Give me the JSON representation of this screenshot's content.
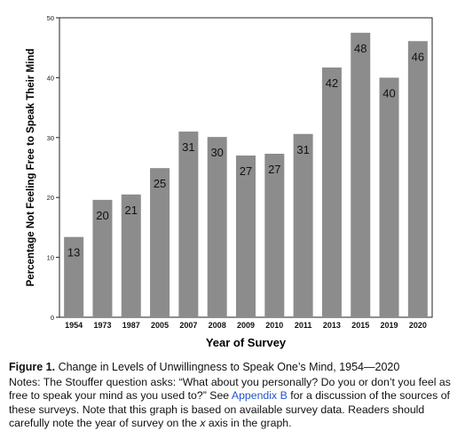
{
  "chart_data": {
    "type": "bar",
    "categories": [
      "1954",
      "1973",
      "1987",
      "2005",
      "2007",
      "2008",
      "2009",
      "2010",
      "2011",
      "2013",
      "2015",
      "2019",
      "2020"
    ],
    "values": [
      13.4,
      19.6,
      20.5,
      24.9,
      31.0,
      30.1,
      27.0,
      27.3,
      30.6,
      41.7,
      47.5,
      40.0,
      46.1
    ],
    "data_labels": [
      "13",
      "20",
      "21",
      "25",
      "31",
      "30",
      "27",
      "27",
      "31",
      "42",
      "48",
      "40",
      "46"
    ],
    "xlabel": "Year of Survey",
    "ylabel": "Percentage Not Feeling Free to Speak Their Mind",
    "ylim": [
      0,
      50
    ],
    "yticks": [
      "0",
      "10",
      "20",
      "30",
      "40",
      "50"
    ],
    "bar_color": "#8c8c8c",
    "grid": false
  },
  "caption": {
    "label": "Figure 1.",
    "title": "Change in Levels of Unwillingness to Speak One’s Mind, 1954—2020",
    "notes_pre": "Notes: The Stouffer question asks: “What about you personally? Do you or don’t you feel as free to speak your mind as you used to?” See ",
    "link_text": "Appendix B",
    "notes_mid": " for a discussion of the sources of these surveys. Note that this graph is based on available survey data. Readers should carefully note the year of survey on the ",
    "x_var": "x",
    "notes_post": " axis in the graph."
  }
}
